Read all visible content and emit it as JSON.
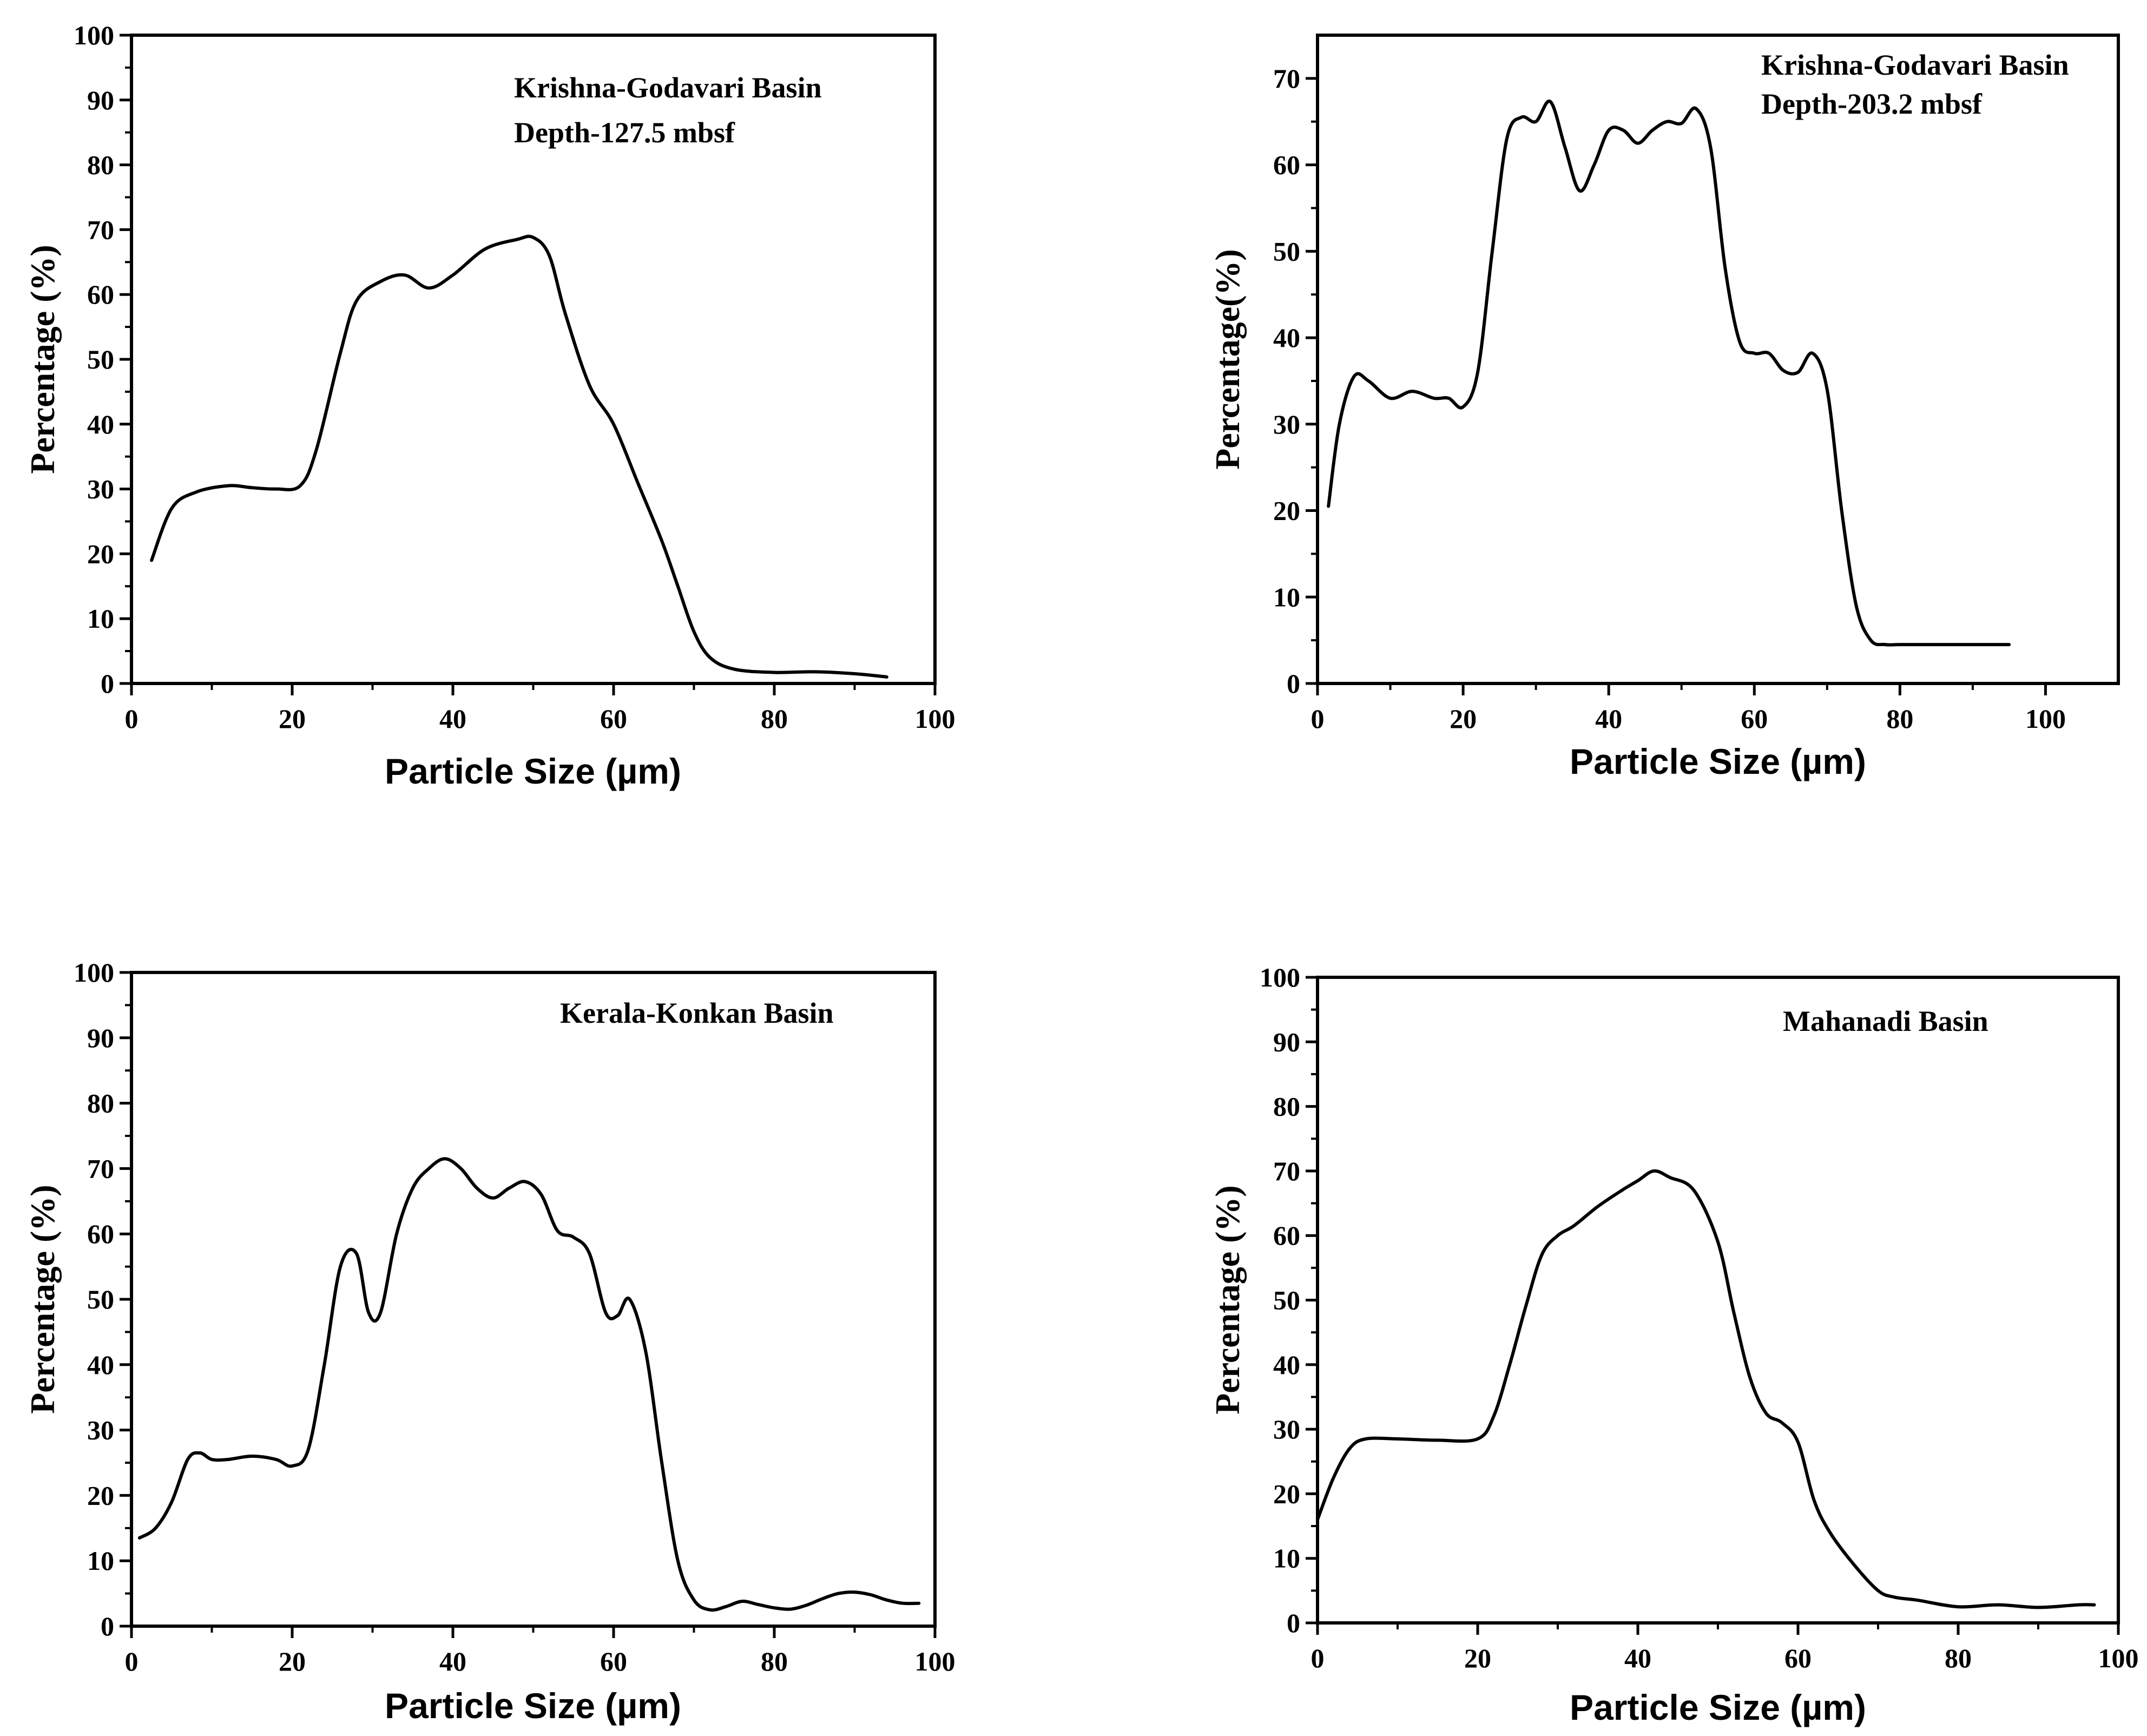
{
  "chart_data": [
    {
      "id": "kg127",
      "type": "line",
      "xlabel": "Particle Size (µm)",
      "ylabel": "Percentage (%)",
      "xlim": [
        0,
        100
      ],
      "ylim": [
        0,
        100
      ],
      "xticks": [
        0,
        20,
        40,
        60,
        80,
        100
      ],
      "yticks": [
        0,
        10,
        20,
        30,
        40,
        50,
        60,
        70,
        80,
        90,
        100
      ],
      "annotations": [
        "Krishna-Godavari Basin",
        "Depth-127.5 mbsf"
      ],
      "series": [
        {
          "name": "Krishna-Godavari Basin, Depth-127.5 mbsf",
          "x": [
            2.5,
            5,
            8,
            12,
            15,
            18,
            21,
            23,
            26,
            28,
            31,
            34,
            37,
            40,
            44,
            48,
            50,
            52,
            54,
            57,
            60,
            63,
            66,
            68,
            70,
            72,
            75,
            80,
            85,
            90,
            94
          ],
          "y": [
            19,
            27,
            29.5,
            30.5,
            30.2,
            30,
            30.5,
            36,
            51,
            59,
            62,
            63,
            61,
            63,
            67,
            68.5,
            68.8,
            66,
            57,
            46,
            40,
            31,
            22,
            15,
            8,
            4,
            2.2,
            1.7,
            1.8,
            1.5,
            1
          ]
        }
      ]
    },
    {
      "id": "kg203",
      "type": "line",
      "xlabel": "Particle Size (µm)",
      "ylabel": "Percentage(%)",
      "xlim": [
        0,
        110
      ],
      "ylim": [
        0,
        75
      ],
      "xticks": [
        0,
        20,
        40,
        60,
        80,
        100
      ],
      "yticks": [
        0,
        10,
        20,
        30,
        40,
        50,
        60,
        70
      ],
      "annotations": [
        "Krishna-Godavari Basin",
        "Depth-203.2 mbsf"
      ],
      "series": [
        {
          "name": "Krishna-Godavari Basin, Depth-203.2 mbsf",
          "x": [
            1.5,
            3,
            5,
            7,
            10,
            13,
            16,
            18,
            20,
            22,
            24,
            26,
            28,
            30,
            32,
            34,
            36,
            38,
            40,
            42,
            44,
            46,
            48,
            50,
            52,
            54,
            56,
            58,
            60,
            62,
            64,
            66,
            68,
            70,
            72,
            74,
            76,
            78,
            80,
            85,
            90,
            95
          ],
          "y": [
            20.5,
            30,
            35.5,
            35,
            33,
            33.8,
            33,
            33,
            32,
            36,
            50,
            63,
            65.5,
            65,
            67.3,
            62,
            57,
            60,
            64,
            64,
            62.5,
            64,
            65,
            64.8,
            66.5,
            62,
            48,
            39.5,
            38.2,
            38.2,
            36.2,
            36,
            38.2,
            34,
            20,
            9,
            5,
            4.5,
            4.5,
            4.5,
            4.5,
            4.5
          ]
        }
      ]
    },
    {
      "id": "kk",
      "type": "line",
      "xlabel": "Particle Size (µm)",
      "ylabel": "Percentage (%)",
      "xlim": [
        0,
        100
      ],
      "ylim": [
        0,
        100
      ],
      "xticks": [
        0,
        20,
        40,
        60,
        80,
        100
      ],
      "yticks": [
        0,
        10,
        20,
        30,
        40,
        50,
        60,
        70,
        80,
        90,
        100
      ],
      "annotations": [
        "Kerala-Konkan Basin"
      ],
      "series": [
        {
          "name": "Kerala-Konkan Basin",
          "x": [
            1,
            3,
            5,
            7,
            8.5,
            10,
            12,
            15,
            18,
            20,
            22,
            24,
            26,
            28,
            29.5,
            31,
            33,
            35,
            37,
            39,
            41,
            43,
            45,
            47,
            49,
            51,
            53,
            55,
            57,
            59,
            60.5,
            62,
            64,
            66,
            68,
            70,
            72,
            74,
            76,
            78,
            80,
            82,
            84,
            86,
            88,
            90,
            92,
            94,
            96,
            98
          ],
          "y": [
            13.5,
            15,
            19,
            25.5,
            26.5,
            25.5,
            25.5,
            26,
            25.5,
            24.5,
            27,
            40,
            55,
            57,
            48,
            48,
            60,
            67,
            70,
            71.5,
            70,
            67,
            65.5,
            67,
            68,
            66,
            60.5,
            59.5,
            57,
            48,
            47.5,
            50,
            42,
            25,
            10,
            4,
            2.5,
            3,
            3.8,
            3.3,
            2.8,
            2.6,
            3.2,
            4.2,
            5,
            5.2,
            4.8,
            4,
            3.5,
            3.5
          ]
        }
      ]
    },
    {
      "id": "mn",
      "type": "line",
      "xlabel": "Particle Size (µm)",
      "ylabel": "Percentage (%)",
      "xlim": [
        0,
        100
      ],
      "ylim": [
        0,
        100
      ],
      "xticks": [
        0,
        20,
        40,
        60,
        80,
        100
      ],
      "yticks": [
        0,
        10,
        20,
        30,
        40,
        50,
        60,
        70,
        80,
        90,
        100
      ],
      "annotations": [
        "Mahanadi Basin"
      ],
      "series": [
        {
          "name": "Mahanadi Basin",
          "x": [
            0,
            2,
            4,
            6,
            10,
            15,
            20,
            22,
            24,
            26,
            28,
            30,
            32,
            35,
            38,
            40,
            42,
            44,
            47,
            50,
            52,
            54,
            56,
            58,
            60,
            62,
            64,
            67,
            70,
            72,
            75,
            80,
            85,
            90,
            95,
            97
          ],
          "y": [
            16,
            22.5,
            27,
            28.5,
            28.5,
            28.3,
            28.5,
            32,
            40,
            49,
            57,
            60,
            61.5,
            64.5,
            67,
            68.5,
            70,
            69,
            67,
            59,
            48,
            38,
            32.5,
            31,
            28,
            19,
            14,
            9,
            5,
            4,
            3.5,
            2.5,
            2.8,
            2.4,
            2.8,
            2.8
          ]
        }
      ]
    }
  ]
}
